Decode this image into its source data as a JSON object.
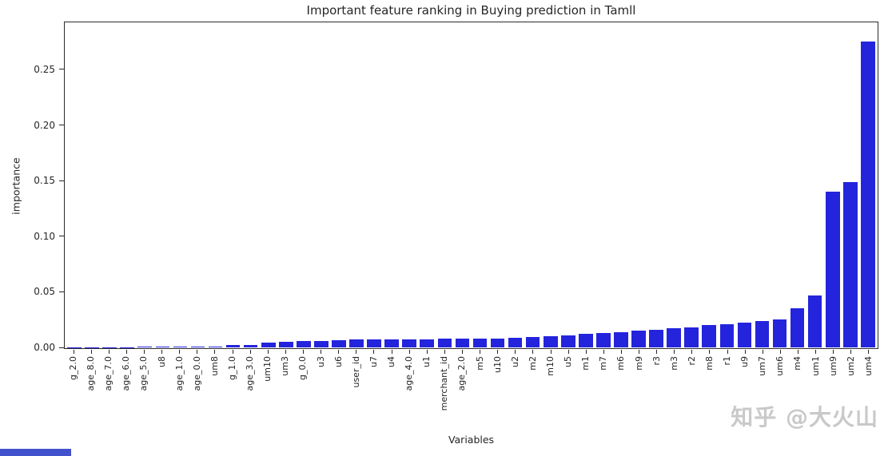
{
  "chart_data": {
    "type": "bar",
    "title": "Important feature ranking in Buying prediction in Tamll",
    "xlabel": "Variables",
    "ylabel": "importance",
    "ylim": [
      0,
      0.293
    ],
    "grid": false,
    "legend": null,
    "bar_color": "#2424dd",
    "ytick_values": [
      0,
      0.05,
      0.1,
      0.15,
      0.2,
      0.25
    ],
    "ytick_labels": [
      "0.00",
      "0.05",
      "0.10",
      "0.15",
      "0.20",
      "0.25"
    ],
    "categories": [
      "g_2.0",
      "age_8.0",
      "age_7.0",
      "age_6.0",
      "age_5.0",
      "u8",
      "age_1.0",
      "age_0.0",
      "um8",
      "g_1.0",
      "age_3.0",
      "um10",
      "um3",
      "g_0.0",
      "u3",
      "u6",
      "user_id",
      "u7",
      "u4",
      "age_4.0",
      "u1",
      "merchant_id",
      "age_2.0",
      "m5",
      "u10",
      "u2",
      "m2",
      "m10",
      "u5",
      "m1",
      "m7",
      "m6",
      "m9",
      "r3",
      "m3",
      "r2",
      "m8",
      "r1",
      "u9",
      "um7",
      "um6",
      "m4",
      "um1",
      "um9",
      "um2",
      "um4"
    ],
    "values": [
      0.0001,
      0.0002,
      0.0002,
      0.0003,
      0.0004,
      0.0005,
      0.0006,
      0.0008,
      0.001,
      0.002,
      0.0025,
      0.004,
      0.005,
      0.0055,
      0.006,
      0.0065,
      0.007,
      0.007,
      0.007,
      0.0075,
      0.0075,
      0.008,
      0.008,
      0.008,
      0.008,
      0.0085,
      0.009,
      0.01,
      0.011,
      0.012,
      0.013,
      0.014,
      0.015,
      0.016,
      0.017,
      0.018,
      0.02,
      0.021,
      0.022,
      0.024,
      0.025,
      0.035,
      0.047,
      0.14,
      0.149,
      0.275
    ]
  },
  "watermark": {
    "text": "知乎 @大火山",
    "color": "#c9c9c9"
  },
  "decor": {
    "bottom_strip_color": "#4152cc"
  }
}
